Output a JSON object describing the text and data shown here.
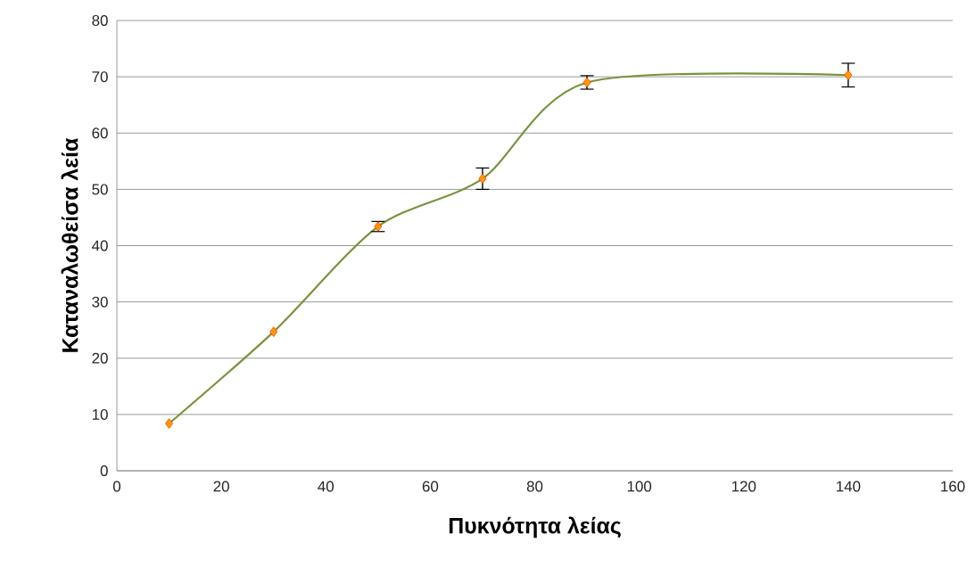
{
  "chart_data": {
    "type": "line",
    "xlabel": "Πυκνότητα λείας",
    "ylabel": "Καταναλωθείσα λεία",
    "x": [
      10,
      30,
      50,
      70,
      90,
      140
    ],
    "series": [
      {
        "color": "#77933c",
        "values": [
          8.4,
          24.7,
          43.4,
          51.9,
          69.0,
          70.3
        ],
        "errors": [
          null,
          null,
          0.9,
          1.9,
          1.2,
          2.1
        ]
      }
    ],
    "xlim": [
      0,
      160
    ],
    "xticks": [
      0,
      20,
      40,
      60,
      80,
      100,
      120,
      140,
      160
    ],
    "ylim": [
      0,
      80
    ],
    "yticks": [
      0,
      10,
      20,
      30,
      40,
      50,
      60,
      70,
      80
    ],
    "grid": "y",
    "marker": "diamond",
    "line_style": "solid"
  }
}
